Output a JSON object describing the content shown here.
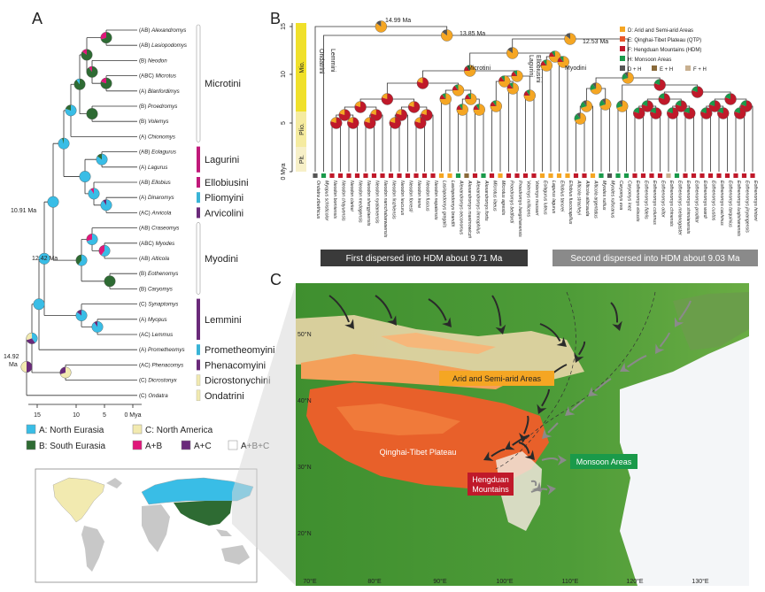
{
  "panels": {
    "a": "A",
    "b": "B",
    "c": "C"
  },
  "panel_a": {
    "taxa": [
      {
        "region": "(AB)",
        "name": "Alexandromys"
      },
      {
        "region": "(AB)",
        "name": "Lasiopodomys"
      },
      {
        "region": "(B)",
        "name": "Neodon"
      },
      {
        "region": "(ABC)",
        "name": "Microtus"
      },
      {
        "region": "(A)",
        "name": "Blanfordimys"
      },
      {
        "region": "(B)",
        "name": "Proedromys"
      },
      {
        "region": "(B)",
        "name": "Volemys"
      },
      {
        "region": "(A)",
        "name": "Chionomys"
      },
      {
        "region": "(AB)",
        "name": "Eolagurus"
      },
      {
        "region": "(A)",
        "name": "Lagurus"
      },
      {
        "region": "(AB)",
        "name": "Ellobius"
      },
      {
        "region": "(A)",
        "name": "Dinaromys"
      },
      {
        "region": "(AC)",
        "name": "Arvicola"
      },
      {
        "region": "(AB)",
        "name": "Craseomys"
      },
      {
        "region": "(ABC)",
        "name": "Myodes"
      },
      {
        "region": "(AB)",
        "name": "Alticola"
      },
      {
        "region": "(B)",
        "name": "Eothenomys"
      },
      {
        "region": "(B)",
        "name": "Caryomys"
      },
      {
        "region": "(C)",
        "name": "Synaptomys"
      },
      {
        "region": "(A)",
        "name": "Myopus"
      },
      {
        "region": "(AC)",
        "name": "Lemmus"
      },
      {
        "region": "(A)",
        "name": "Prometheomys"
      },
      {
        "region": "(AC)",
        "name": "Phenacomys"
      },
      {
        "region": "(C)",
        "name": "Dicrostonyx"
      },
      {
        "region": "(C)",
        "name": "Ondatra"
      }
    ],
    "tribes": [
      {
        "name": "Microtini",
        "color": "#ffffff"
      },
      {
        "name": "Lagurini",
        "color": "#c0197a"
      },
      {
        "name": "Ellobiusini",
        "color": "#c0197a"
      },
      {
        "name": "Pliomyini",
        "color": "#39b4d6"
      },
      {
        "name": "Arvicolini",
        "color": "#6a2a7a"
      },
      {
        "name": "Myodini",
        "color": "#ffffff"
      },
      {
        "name": "Lemmini",
        "color": "#6a2a7a"
      },
      {
        "name": "Prometheomyini",
        "color": "#39b4d6"
      },
      {
        "name": "Phenacomyini",
        "color": "#6a2a7a"
      },
      {
        "name": "Dicrostonychini",
        "color": "#f2eab0"
      },
      {
        "name": "Ondatrini",
        "color": "#f2eab0"
      }
    ],
    "node_ages": [
      "10.91 Ma",
      "12.42 Ma",
      "14.92",
      "Ma"
    ],
    "axis_ticks": [
      "15",
      "10",
      "5",
      "0 Mya"
    ],
    "legend": [
      {
        "label": "A: North Eurasia",
        "color": "#39bde6"
      },
      {
        "label": "C: North America",
        "color": "#f2eab0"
      },
      {
        "label": "B: South Eurasia",
        "color": "#2e6b33"
      },
      {
        "label": "A+B",
        "color": "#e0177a"
      },
      {
        "label": "A+C",
        "color": "#6a2a7a"
      },
      {
        "label": "A+B+C",
        "color": "#ffffff"
      }
    ]
  },
  "panel_b": {
    "y_ticks": [
      "15",
      "10",
      "5",
      "0 Mya"
    ],
    "epochs": [
      {
        "name": "Mio.",
        "color": "#f0e02a"
      },
      {
        "name": "Plio.",
        "color": "#f5eba0"
      },
      {
        "name": "Plt.",
        "color": "#f7f0c8"
      }
    ],
    "node_ages": [
      "14.99 Ma",
      "13.85 Ma",
      "12.53 Ma"
    ],
    "clade_labels": [
      "Ondatrini",
      "Lemmini",
      "Microtini",
      "Ellobiusini",
      "Lagurini",
      "Myodini"
    ],
    "legend": [
      {
        "label": "D: Arid and Semi-arid Areas",
        "color": "#f5a623"
      },
      {
        "label": "E: Qinghai-Tibet Plateau (QTP)",
        "color": "#e8562a"
      },
      {
        "label": "F: Hengduan Mountains (HDM)",
        "color": "#c0192a"
      },
      {
        "label": "H: Monsoon Areas",
        "color": "#1a9a4a"
      },
      {
        "label": "D + H",
        "color": "#555555"
      },
      {
        "label": "E + H",
        "color": "#8a6a3a"
      },
      {
        "label": "F + H",
        "color": "#c8b090"
      }
    ],
    "species": [
      "Ondatra zibethicus",
      "Myopus schisticolor",
      "Neodon bomiensis",
      "Neodon chayuensis",
      "Neodon clarkei",
      "Neodon medogensis",
      "Neodon shergylaensis",
      "Neodon nyalamensis",
      "Neodon namchabarwaensis",
      "Neodon linzhiensis",
      "Neodon leucurus",
      "Neodon forresti",
      "Neodon irene",
      "Neodon fuscus",
      "Neodon nepalensis",
      "Lasiopodomys gregalis",
      "Lasiopodomys brandtii",
      "Alexandromys oeconomus",
      "Alexandromys maximowiczii",
      "Alexandromys limnophilus",
      "Alexandromys fortis",
      "Microtus ilaeus",
      "Microtus agrestis",
      "Proedromys bedfordi",
      "Proedromys liangshanensis",
      "Volemys millicens",
      "Volemys musseri",
      "Eolagurus luteus",
      "Lagurus lagurus",
      "Ellobius tancrei",
      "Ellobius fuscocapillus",
      "Alticola stracheyi",
      "Alticola albicauda",
      "Alticola argentatus",
      "Myodes rutilus",
      "Myodes rufocanus",
      "Caryomys eva",
      "Caryomys inez",
      "Eothenomys eleusis",
      "Eothenomys fidelis",
      "Eothenomys colurnus",
      "Eothenomys olitor",
      "Eothenomys chinensis",
      "Eothenomys melanogaster",
      "Eothenomys shimianensis",
      "Eothenomys proditor",
      "Eothenomys wardi",
      "Eothenomys custos",
      "Eothenomys cachinus",
      "Eothenomys tarquinius",
      "Eothenomys luojishanensis",
      "Eothenomys jinyangensis",
      "Eothenomys hintoni"
    ],
    "dispersal_bars": [
      "First dispersed into HDM about 9.71 Ma",
      "Second dispersed into HDM about 9.03 Ma"
    ]
  },
  "panel_c": {
    "labels": [
      {
        "text": "Arid and Semi-arid Areas",
        "color": "#f5a623"
      },
      {
        "text": "Qinghai-Tibet Plateau",
        "color": "#e8562a"
      },
      {
        "text": "Hengduan",
        "color": "#c0192a"
      },
      {
        "text": "Mountains",
        "color": "#c0192a"
      },
      {
        "text": "Monsoon Areas",
        "color": "#1a9a4a"
      }
    ],
    "lat_ticks": [
      "50°N",
      "40°N",
      "30°N",
      "20°N"
    ],
    "lon_ticks": [
      "70°E",
      "80°E",
      "90°E",
      "100°E",
      "110°E",
      "120°E",
      "130°E"
    ]
  }
}
